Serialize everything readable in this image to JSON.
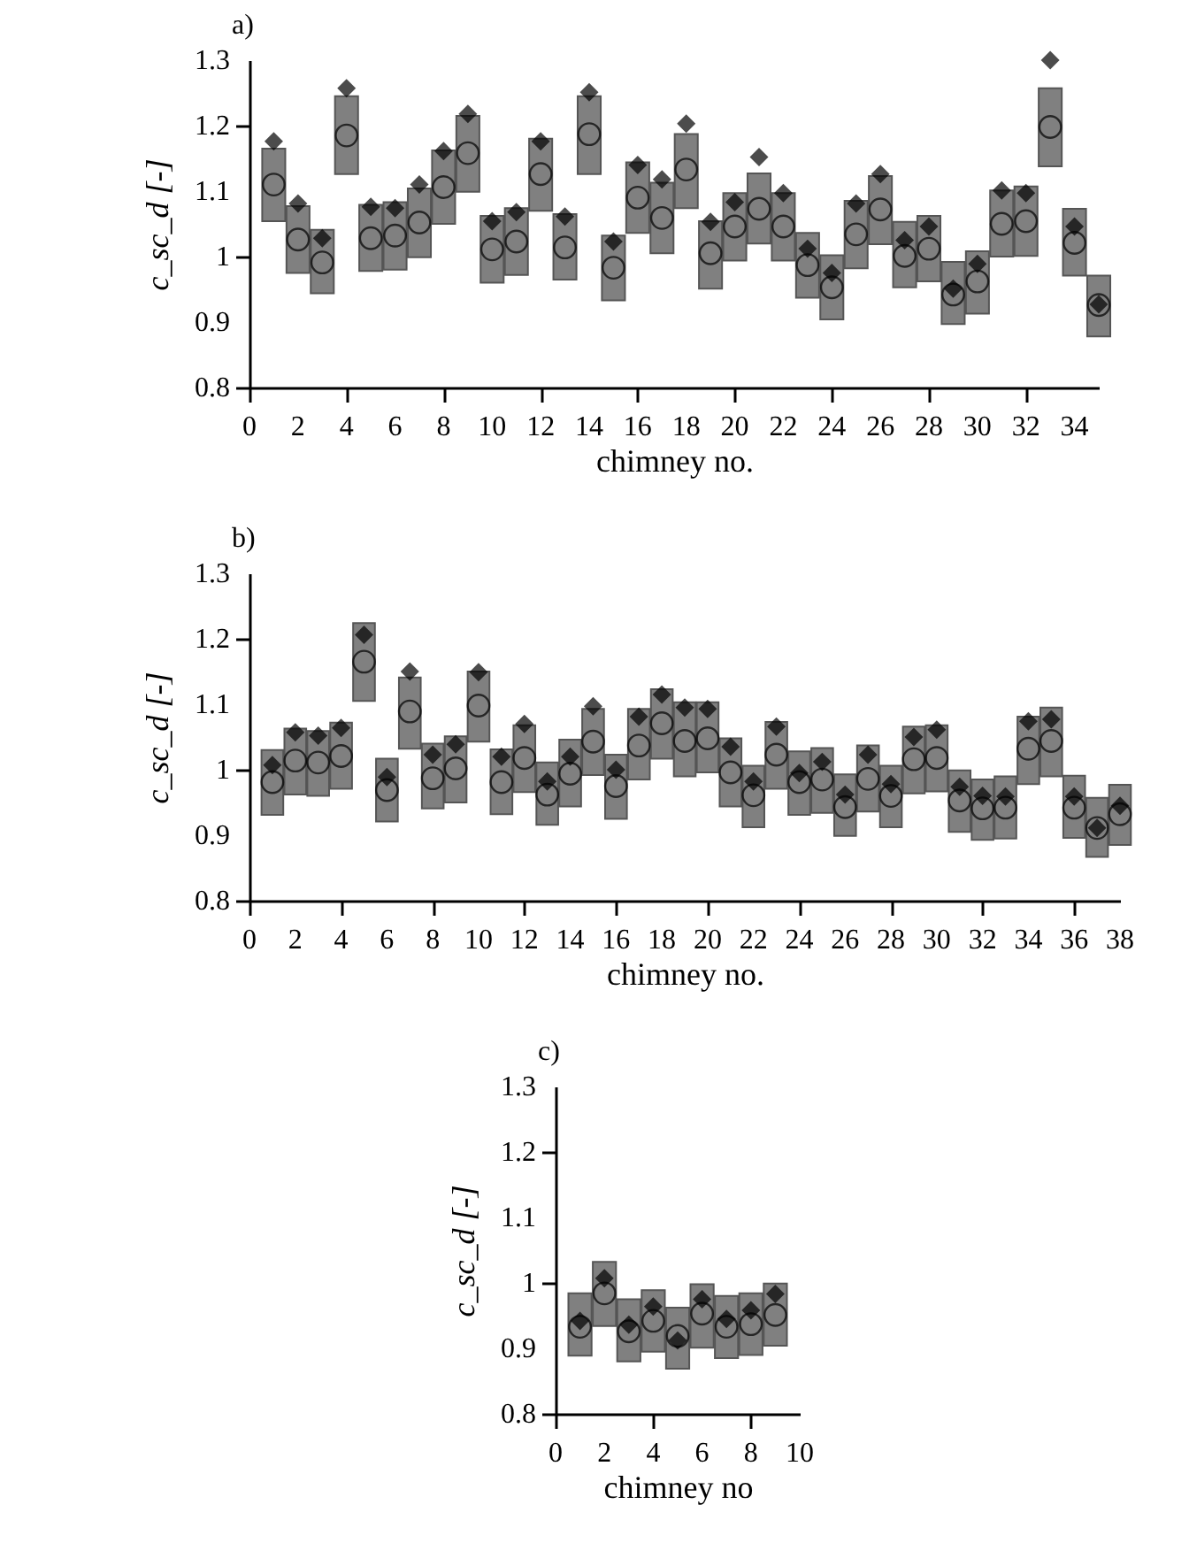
{
  "chart_data": [
    {
      "type": "bar",
      "title": "a)",
      "xlabel": "chimney no.",
      "ylabel": "c_sc_d [-]",
      "x": [
        1,
        2,
        3,
        4,
        5,
        6,
        7,
        8,
        9,
        10,
        11,
        12,
        13,
        14,
        15,
        16,
        17,
        18,
        19,
        20,
        21,
        22,
        23,
        24,
        25,
        26,
        27,
        28,
        29,
        30,
        31,
        32,
        33,
        34,
        35
      ],
      "xlim": [
        0,
        35
      ],
      "xticks": [
        0,
        2,
        4,
        6,
        8,
        10,
        12,
        14,
        16,
        18,
        20,
        22,
        24,
        26,
        28,
        30,
        32,
        34
      ],
      "ylim": [
        0.8,
        1.3
      ],
      "yticks": [
        0.8,
        0.9,
        1,
        1.1,
        1.2,
        1.3
      ],
      "series": [
        {
          "type": "bar",
          "color": "#808080",
          "base": [
            1.054,
            0.975,
            0.944,
            1.126,
            0.978,
            0.98,
            0.999,
            1.05,
            1.099,
            0.96,
            0.972,
            1.07,
            0.965,
            1.126,
            0.933,
            1.036,
            1.005,
            1.074,
            0.951,
            0.994,
            1.02,
            0.994,
            0.937,
            0.904,
            0.982,
            1.019,
            0.953,
            0.962,
            0.897,
            0.913,
            1.0,
            1.001,
            1.138,
            0.971,
            0.878
          ],
          "values": [
            0.111,
            0.102,
            0.097,
            0.119,
            0.101,
            0.103,
            0.105,
            0.112,
            0.116,
            0.102,
            0.102,
            0.11,
            0.1,
            0.119,
            0.099,
            0.108,
            0.108,
            0.113,
            0.103,
            0.103,
            0.107,
            0.103,
            0.099,
            0.098,
            0.103,
            0.104,
            0.1,
            0.1,
            0.095,
            0.095,
            0.101,
            0.106,
            0.119,
            0.102,
            0.093
          ]
        },
        {
          "type": "scatter",
          "marker": "circle",
          "color": "#000000",
          "values": [
            1.11,
            1.026,
            0.991,
            1.185,
            1.028,
            1.032,
            1.052,
            1.106,
            1.158,
            1.011,
            1.023,
            1.126,
            1.014,
            1.187,
            0.983,
            1.09,
            1.059,
            1.133,
            1.005,
            1.046,
            1.073,
            1.046,
            0.987,
            0.953,
            1.034,
            1.072,
            1.001,
            1.012,
            0.942,
            0.962,
            1.05,
            1.054,
            1.198,
            1.021,
            0.926
          ]
        },
        {
          "type": "scatter",
          "marker": "diamond",
          "color": "#000000",
          "values": [
            1.176,
            1.081,
            1.028,
            1.257,
            1.076,
            1.074,
            1.11,
            1.161,
            1.218,
            1.054,
            1.068,
            1.176,
            1.061,
            1.251,
            1.023,
            1.14,
            1.118,
            1.203,
            1.053,
            1.083,
            1.152,
            1.097,
            1.012,
            0.975,
            1.081,
            1.126,
            1.025,
            1.046,
            0.951,
            0.989,
            1.101,
            1.097,
            1.3,
            1.046,
            0.927
          ]
        }
      ]
    },
    {
      "type": "bar",
      "title": "b)",
      "xlabel": "chimney no.",
      "ylabel": "c_sc_d [-]",
      "x": [
        1,
        2,
        3,
        4,
        5,
        6,
        7,
        8,
        9,
        10,
        11,
        12,
        13,
        14,
        15,
        16,
        17,
        18,
        19,
        20,
        21,
        22,
        23,
        24,
        25,
        26,
        27,
        28,
        29,
        30,
        31,
        32,
        33,
        34,
        35,
        36,
        37,
        38
      ],
      "xlim": [
        0,
        38
      ],
      "xticks": [
        0,
        2,
        4,
        6,
        8,
        10,
        12,
        14,
        16,
        18,
        20,
        22,
        24,
        26,
        28,
        30,
        32,
        34,
        36,
        38
      ],
      "ylim": [
        0.8,
        1.3
      ],
      "yticks": [
        0.8,
        0.9,
        1,
        1.1,
        1.2,
        1.3
      ],
      "series": [
        {
          "type": "bar",
          "color": "#808080",
          "base": [
            0.931,
            0.962,
            0.96,
            0.971,
            1.105,
            0.921,
            1.032,
            0.941,
            0.95,
            1.043,
            0.932,
            0.966,
            0.916,
            0.944,
            0.992,
            0.925,
            0.985,
            1.017,
            0.99,
            0.996,
            0.944,
            0.912,
            0.971,
            0.931,
            0.934,
            0.899,
            0.936,
            0.912,
            0.964,
            0.967,
            0.905,
            0.893,
            0.895,
            0.978,
            0.99,
            0.896,
            0.867,
            0.885
          ],
          "values": [
            0.099,
            0.101,
            0.099,
            0.101,
            0.119,
            0.096,
            0.109,
            0.099,
            0.101,
            0.107,
            0.099,
            0.102,
            0.095,
            0.102,
            0.101,
            0.098,
            0.108,
            0.106,
            0.113,
            0.107,
            0.104,
            0.094,
            0.102,
            0.097,
            0.099,
            0.094,
            0.101,
            0.094,
            0.102,
            0.101,
            0.094,
            0.092,
            0.095,
            0.103,
            0.105,
            0.095,
            0.09,
            0.092
          ]
        },
        {
          "type": "scatter",
          "marker": "circle",
          "color": "#000000",
          "values": [
            0.981,
            1.014,
            1.011,
            1.021,
            1.165,
            0.969,
            1.089,
            0.987,
            1.002,
            1.098,
            0.981,
            1.018,
            0.962,
            0.994,
            1.043,
            0.975,
            1.037,
            1.071,
            1.044,
            1.048,
            0.996,
            0.961,
            1.023,
            0.981,
            0.985,
            0.943,
            0.986,
            0.96,
            1.016,
            1.018,
            0.953,
            0.941,
            0.942,
            1.032,
            1.044,
            0.942,
            0.911,
            0.932
          ]
        },
        {
          "type": "scatter",
          "marker": "diamond",
          "color": "#000000",
          "values": [
            1.007,
            1.057,
            1.052,
            1.064,
            1.206,
            0.989,
            1.15,
            1.023,
            1.039,
            1.149,
            1.02,
            1.07,
            0.982,
            1.02,
            1.097,
            1.0,
            1.081,
            1.115,
            1.095,
            1.093,
            1.035,
            0.982,
            1.066,
            0.995,
            1.012,
            0.962,
            1.023,
            0.978,
            1.05,
            1.061,
            0.974,
            0.96,
            0.959,
            1.074,
            1.077,
            0.959,
            0.911,
            0.945
          ]
        }
      ]
    },
    {
      "type": "bar",
      "title": "c)",
      "xlabel": "chimney no",
      "ylabel": "c_sc_d [-]",
      "x": [
        1,
        2,
        3,
        4,
        5,
        6,
        7,
        8,
        9
      ],
      "xlim": [
        0,
        10
      ],
      "xticks": [
        0,
        2,
        4,
        6,
        8,
        10
      ],
      "ylim": [
        0.8,
        1.3
      ],
      "yticks": [
        0.8,
        0.9,
        1,
        1.1,
        1.2,
        1.3
      ],
      "series": [
        {
          "type": "bar",
          "color": "#808080",
          "base": [
            0.889,
            0.934,
            0.88,
            0.895,
            0.869,
            0.901,
            0.885,
            0.89,
            0.904
          ],
          "values": [
            0.095,
            0.098,
            0.095,
            0.094,
            0.093,
            0.097,
            0.095,
            0.094,
            0.095
          ]
        },
        {
          "type": "scatter",
          "marker": "circle",
          "color": "#000000",
          "values": [
            0.933,
            0.984,
            0.926,
            0.942,
            0.919,
            0.953,
            0.933,
            0.937,
            0.951
          ]
        },
        {
          "type": "scatter",
          "marker": "diamond",
          "color": "#000000",
          "values": [
            0.942,
            1.007,
            0.936,
            0.964,
            0.912,
            0.975,
            0.945,
            0.958,
            0.983
          ]
        }
      ]
    }
  ]
}
